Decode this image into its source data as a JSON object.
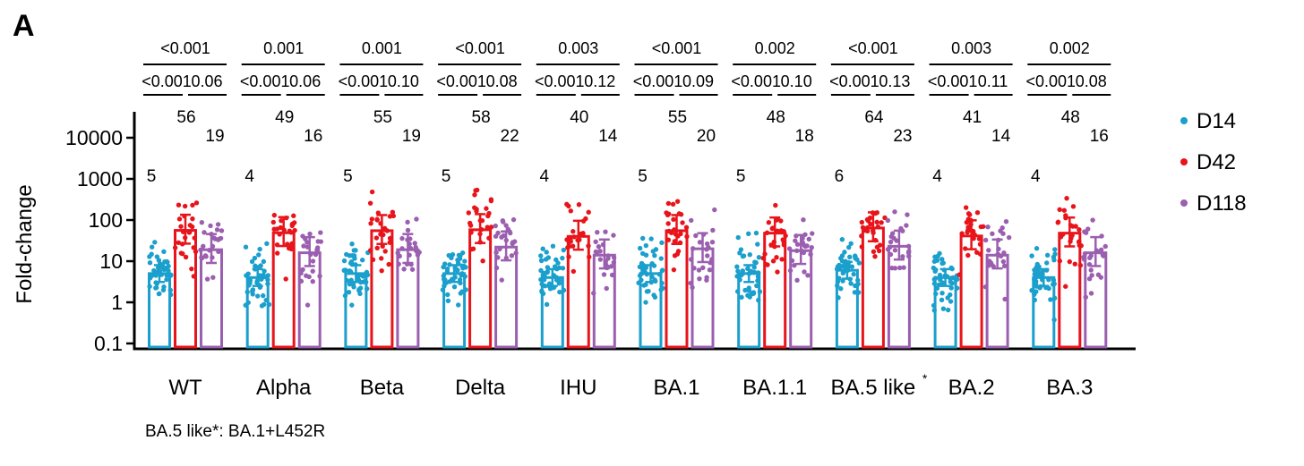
{
  "panel_letter": "A",
  "footnote": "BA.5 like*: BA.1+L452R",
  "chart_data": {
    "type": "bar",
    "ylabel": "Fold-change",
    "yscale": "log",
    "ylim": [
      0.1,
      20000
    ],
    "yticks": [
      "0.1",
      "1",
      "10",
      "100",
      "1000",
      "10000"
    ],
    "ytick_values": [
      0.1,
      1,
      10,
      100,
      1000,
      10000
    ],
    "categories": [
      "WT",
      "Alpha",
      "Beta",
      "Delta",
      "IHU",
      "BA.1",
      "BA.1.1",
      "BA.5 like",
      "BA.2",
      "BA.3"
    ],
    "category_superscripts": [
      "",
      "",
      "",
      "",
      "",
      "",
      "",
      "*",
      "",
      ""
    ],
    "series": [
      {
        "name": "D14",
        "color": "#1B9FCC",
        "values": [
          5,
          4,
          5,
          5,
          4,
          5,
          5,
          6,
          4,
          4
        ],
        "labels": [
          "5",
          "4",
          "5",
          "5",
          "4",
          "5",
          "5",
          "6",
          "4",
          "4"
        ]
      },
      {
        "name": "D42",
        "color": "#E8141B",
        "values": [
          56,
          49,
          55,
          58,
          40,
          55,
          48,
          64,
          41,
          48
        ],
        "labels": [
          "56",
          "49",
          "55",
          "58",
          "40",
          "55",
          "48",
          "64",
          "41",
          "48"
        ]
      },
      {
        "name": "D118",
        "color": "#9B5FB0",
        "values": [
          19,
          16,
          19,
          22,
          14,
          20,
          18,
          23,
          14,
          16
        ],
        "labels": [
          "19",
          "16",
          "19",
          "22",
          "14",
          "20",
          "18",
          "23",
          "14",
          "16"
        ]
      }
    ],
    "pvalues": [
      {
        "top": "<0.001",
        "left": "<0.001",
        "right": "0.06"
      },
      {
        "top": "0.001",
        "left": "<0.001",
        "right": "0.06"
      },
      {
        "top": "0.001",
        "left": "<0.001",
        "right": "0.10"
      },
      {
        "top": "<0.001",
        "left": "<0.001",
        "right": "0.08"
      },
      {
        "top": "0.003",
        "left": "<0.001",
        "right": "0.12"
      },
      {
        "top": "<0.001",
        "left": "<0.001",
        "right": "0.09"
      },
      {
        "top": "0.002",
        "left": "<0.001",
        "right": "0.10"
      },
      {
        "top": "<0.001",
        "left": "<0.001",
        "right": "0.13"
      },
      {
        "top": "0.003",
        "left": "<0.001",
        "right": "0.11"
      },
      {
        "top": "0.002",
        "left": "<0.001",
        "right": "0.08"
      }
    ],
    "legend": [
      {
        "name": "D14",
        "color": "#1B9FCC"
      },
      {
        "name": "D42",
        "color": "#E8141B"
      },
      {
        "name": "D118",
        "color": "#9B5FB0"
      }
    ]
  }
}
